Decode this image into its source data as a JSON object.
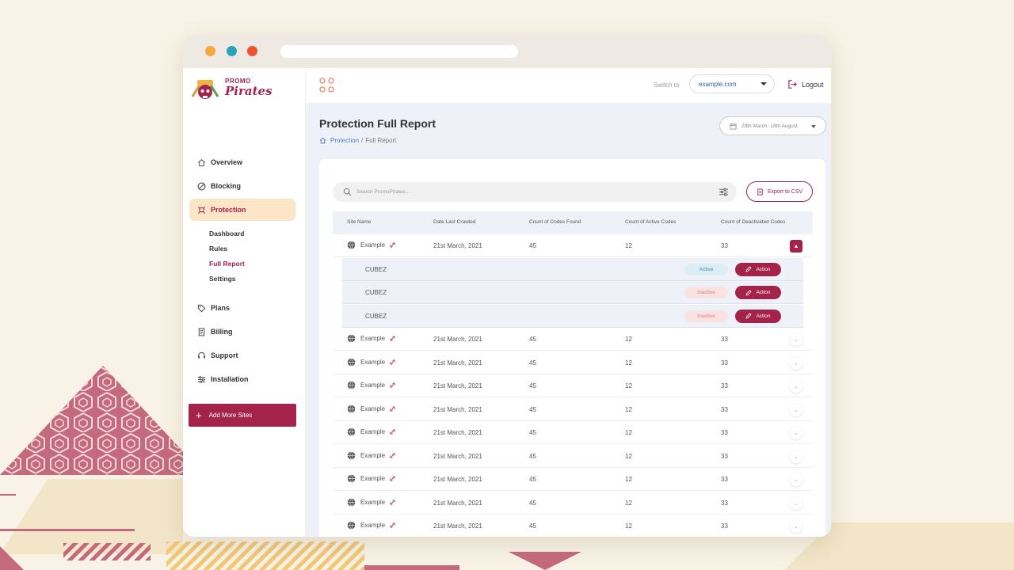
{
  "colors": {
    "brand": "#a3234a",
    "active_nav_bg": "#fde5c8",
    "dot_orange": "#f5a742",
    "dot_teal": "#2aa3b8",
    "dot_red": "#f0522d"
  },
  "brand": {
    "small": "PROMO",
    "big": "Pirates"
  },
  "sidebar": {
    "items": [
      {
        "label": "Overview",
        "icon": "home-icon"
      },
      {
        "label": "Blocking",
        "icon": "block-icon"
      },
      {
        "label": "Protection",
        "icon": "skull-icon",
        "active": true
      },
      {
        "label": "Plans",
        "icon": "tag-icon"
      },
      {
        "label": "Billing",
        "icon": "invoice-icon"
      },
      {
        "label": "Support",
        "icon": "headset-icon"
      },
      {
        "label": "Installation",
        "icon": "sliders-icon"
      }
    ],
    "subitems": [
      "Dashboard",
      "Rules",
      "Full Report",
      "Settings"
    ],
    "active_subitem": "Full Report",
    "add_button": "Add More Sites"
  },
  "topbar": {
    "switch_label": "Switch to",
    "site": "example.com",
    "logout": "Logout"
  },
  "page": {
    "title": "Protection Full Report",
    "breadcrumb": [
      "Protection",
      "Full Report"
    ],
    "date_range": "29th March -18th August"
  },
  "search": {
    "placeholder": "Search PromoPirates..."
  },
  "export_label": "Export to CSV",
  "table": {
    "headers": [
      "Site Name",
      "Date Last Crawled",
      "Count of Codes Found",
      "Count of Active Codes",
      "Count of Deactivated Codes"
    ],
    "rows": [
      {
        "site": "Example",
        "date": "21st March, 2021",
        "found": "45",
        "active": "12",
        "deactivated": "33",
        "expanded": true
      },
      {
        "site": "Example",
        "date": "21st March, 2021",
        "found": "45",
        "active": "12",
        "deactivated": "33"
      },
      {
        "site": "Example",
        "date": "21st March, 2021",
        "found": "45",
        "active": "12",
        "deactivated": "33"
      },
      {
        "site": "Example",
        "date": "21st March, 2021",
        "found": "45",
        "active": "12",
        "deactivated": "33"
      },
      {
        "site": "Example",
        "date": "21st March, 2021",
        "found": "45",
        "active": "12",
        "deactivated": "33"
      },
      {
        "site": "Example",
        "date": "21st March, 2021",
        "found": "45",
        "active": "12",
        "deactivated": "33"
      },
      {
        "site": "Example",
        "date": "21st March, 2021",
        "found": "45",
        "active": "12",
        "deactivated": "33"
      },
      {
        "site": "Example",
        "date": "21st March, 2021",
        "found": "45",
        "active": "12",
        "deactivated": "33"
      },
      {
        "site": "Example",
        "date": "21st March, 2021",
        "found": "45",
        "active": "12",
        "deactivated": "33"
      },
      {
        "site": "Example",
        "date": "21st March, 2021",
        "found": "45",
        "active": "12",
        "deactivated": "33"
      }
    ],
    "codes": [
      {
        "code": "CUBEZ",
        "status": "Active",
        "action": "Action"
      },
      {
        "code": "CUBEZ",
        "status": "Inactive",
        "action": "Action"
      },
      {
        "code": "CUBEZ",
        "status": "Inactive",
        "action": "Action"
      }
    ]
  }
}
